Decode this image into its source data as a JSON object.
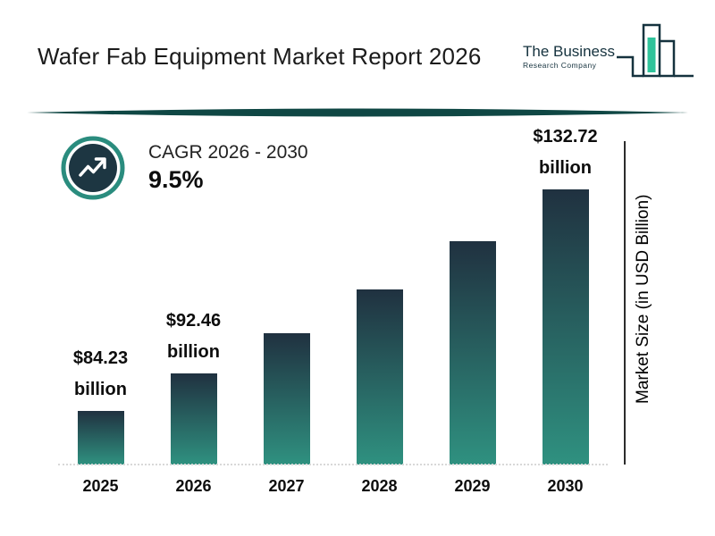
{
  "title": "Wafer Fab Equipment Market Report 2026",
  "logo": {
    "line1": "The Business",
    "line2": "Research Company"
  },
  "cagr": {
    "label": "CAGR 2026 - 2030",
    "value": "9.5%"
  },
  "chart_data": {
    "type": "bar",
    "title": "Wafer Fab Equipment Market Report 2026",
    "categories": [
      "2025",
      "2026",
      "2027",
      "2028",
      "2029",
      "2030"
    ],
    "values": [
      84.23,
      92.46,
      101.24,
      110.85,
      121.38,
      132.72
    ],
    "value_labels": [
      {
        "value": "$84.23",
        "unit": "billion"
      },
      {
        "value": "$92.46",
        "unit": "billion"
      },
      null,
      null,
      null,
      {
        "value": "$132.72",
        "unit": "billion"
      }
    ],
    "xlabel": "",
    "ylabel": "Market Size (in USD Billion)",
    "grid": false,
    "baseline_truncated": true,
    "legend": "none"
  },
  "colors": {
    "navy": "#1d3642",
    "teal": "#2a8c7e",
    "teal_bright": "#2fc39b",
    "bar_top": "#203140",
    "bar_bottom": "#2f9180",
    "swoosh": "#0f4744",
    "axis": "#2c2c2c"
  }
}
